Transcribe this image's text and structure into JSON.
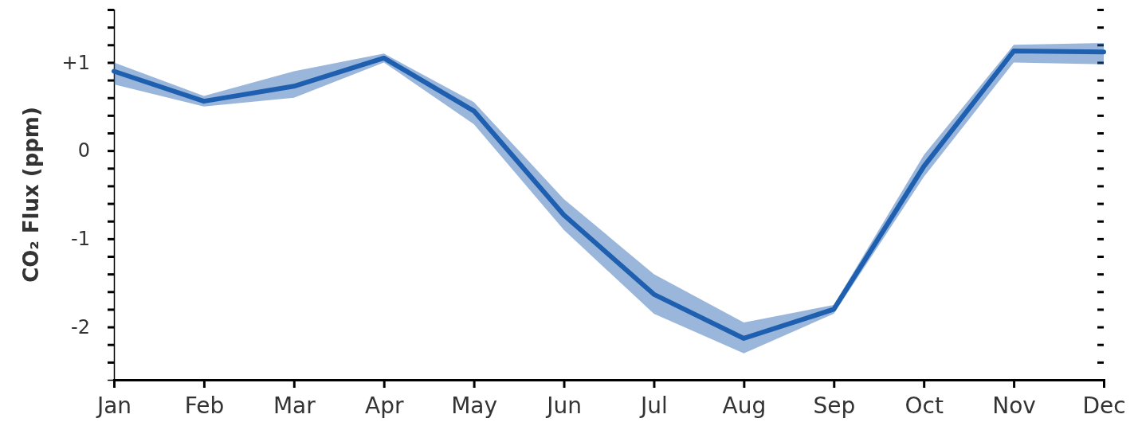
{
  "chart_data": {
    "type": "line",
    "ylabel": "CO₂ Flux (ppm)",
    "categories": [
      "Jan",
      "Feb",
      "Mar",
      "Apr",
      "May",
      "Jun",
      "Jul",
      "Aug",
      "Sep",
      "Oct",
      "Nov",
      "Dec"
    ],
    "series": [
      {
        "color": "#1f5fb0",
        "values": [
          0.9,
          0.56,
          0.73,
          1.05,
          0.45,
          -0.73,
          -1.63,
          -2.13,
          -1.8,
          -0.18,
          1.13,
          1.12
        ],
        "lower": [
          0.75,
          0.5,
          0.6,
          1.0,
          0.3,
          -0.9,
          -1.85,
          -2.3,
          -1.85,
          -0.3,
          1.0,
          0.98
        ],
        "upper": [
          1.0,
          0.62,
          0.9,
          1.1,
          0.55,
          -0.55,
          -1.4,
          -1.95,
          -1.75,
          -0.05,
          1.2,
          1.22
        ]
      }
    ],
    "ylim": [
      -2.6,
      1.6
    ],
    "yticks": [
      {
        "value": -2.4,
        "label": null
      },
      {
        "value": -2.2,
        "label": null
      },
      {
        "value": -2,
        "label": "-2"
      },
      {
        "value": -1.8,
        "label": null
      },
      {
        "value": -1.6,
        "label": null
      },
      {
        "value": -1.4,
        "label": null
      },
      {
        "value": -1.2,
        "label": null
      },
      {
        "value": -1,
        "label": "-1"
      },
      {
        "value": -0.8,
        "label": null
      },
      {
        "value": -0.6,
        "label": null
      },
      {
        "value": -0.4,
        "label": null
      },
      {
        "value": -0.2,
        "label": null
      },
      0,
      {
        "value": 0.2,
        "label": null
      },
      {
        "value": 0.4,
        "label": null
      },
      {
        "value": 0.6,
        "label": null
      },
      {
        "value": 0.8,
        "label": null
      },
      {
        "value": 1,
        "label": "+1"
      },
      {
        "value": 1.2,
        "label": null
      },
      {
        "value": 1.4,
        "label": null
      },
      {
        "value": 1.6,
        "label": null
      }
    ],
    "grid": false,
    "marker": "none",
    "line_style": "solid"
  }
}
